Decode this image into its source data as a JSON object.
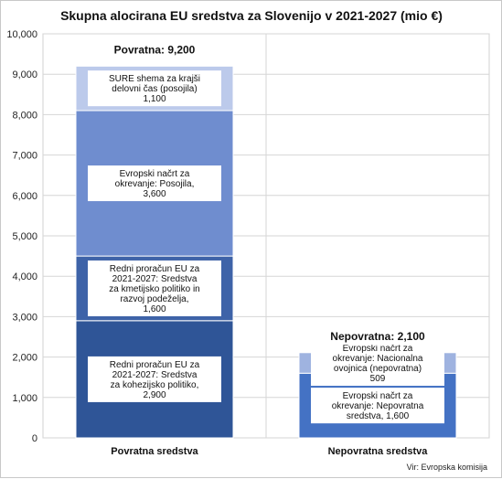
{
  "chart_data": {
    "type": "bar",
    "stacked": true,
    "title": "Skupna alocirana EU sredstva za Slovenijo v 2021-2027 (mio €)",
    "ylim": [
      0,
      10000
    ],
    "yticks": [
      "0",
      "1,000",
      "2,000",
      "3,000",
      "4,000",
      "5,000",
      "6,000",
      "7,000",
      "8,000",
      "9,000",
      "10,000"
    ],
    "grid": true,
    "categories": [
      "Povratna sredstva",
      "Nepovratna sredstva"
    ],
    "stacks": [
      {
        "category": "Povratna sredstva",
        "total_label": "Povratna: 9,200",
        "total": 9200,
        "segments": [
          {
            "lines": [
              "Redni proračun EU za",
              "2021-2027: Sredstva",
              "za kohezijsko politiko,",
              "2,900"
            ],
            "value": 2900,
            "color": "#2f5597"
          },
          {
            "lines": [
              "Redni proračun EU za",
              "2021-2027: Sredstva",
              "za kmetijsko politiko in",
              "razvoj podeželja,",
              "1,600"
            ],
            "value": 1600,
            "color": "#3e63a8"
          },
          {
            "lines": [
              "Evropski načrt za",
              "okrevanje: Posojila,",
              "3,600"
            ],
            "value": 3600,
            "color": "#6f8dcf"
          },
          {
            "lines": [
              "SURE shema za krajši",
              "delovni čas (posojila)",
              "1,100"
            ],
            "value": 1100,
            "color": "#bccaeb"
          }
        ]
      },
      {
        "category": "Nepovratna sredstva",
        "total_label": "Nepovratna: 2,100",
        "total": 2100,
        "segments": [
          {
            "lines": [
              "Evropski načrt za",
              "okrevanje: Nepovratna",
              "sredstva, 1,600"
            ],
            "value": 1600,
            "color": "#4472c4"
          },
          {
            "lines": [
              "Evropski načrt za",
              "okrevanje: Nacionalna",
              "ovojnica (nepovratna)",
              "509"
            ],
            "value": 509,
            "color": "#9fb3e0"
          }
        ]
      }
    ],
    "source": "Vir: Evropska komisija"
  }
}
